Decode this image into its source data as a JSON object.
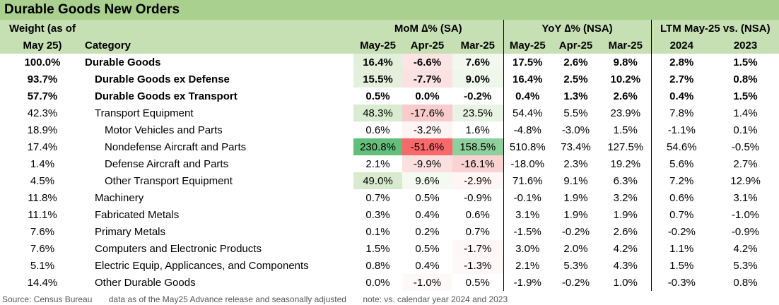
{
  "title": "Durable Goods New Orders",
  "header": {
    "weight_line1": "Weight (as of",
    "weight_line2": "May 25)",
    "category": "Category",
    "mom_group": "MoM ∆% (SA)",
    "yoy_group": "YoY ∆% (NSA)",
    "ltm_group": "LTM May-25 vs. (NSA)",
    "mom_cols": [
      "May-25",
      "Apr-25",
      "Mar-25"
    ],
    "yoy_cols": [
      "May-25",
      "Apr-25",
      "Mar-25"
    ],
    "ltm_cols": [
      "2024",
      "2023"
    ]
  },
  "rows": [
    {
      "weight": "100.0%",
      "category": "Durable Goods",
      "level": 1,
      "bold": true,
      "mom": [
        "16.4%",
        "-6.6%",
        "7.6%"
      ],
      "yoy": [
        "17.5%",
        "2.6%",
        "9.8%"
      ],
      "ltm": [
        "2.8%",
        "1.5%"
      ],
      "mom_bg": [
        "#e2efda",
        "#fce4e4",
        "#f3f8ef"
      ]
    },
    {
      "weight": "93.7%",
      "category": "Durable Goods ex Defense",
      "level": 2,
      "bold": true,
      "mom": [
        "15.5%",
        "-7.7%",
        "9.0%"
      ],
      "yoy": [
        "16.4%",
        "2.5%",
        "10.2%"
      ],
      "ltm": [
        "2.7%",
        "0.8%"
      ],
      "mom_bg": [
        "#e4f0dc",
        "#fbe1e1",
        "#eff6ea"
      ]
    },
    {
      "weight": "57.7%",
      "category": "Durable Goods ex Transport",
      "level": 2,
      "bold": true,
      "mom": [
        "0.5%",
        "0.0%",
        "-0.2%"
      ],
      "yoy": [
        "0.4%",
        "1.3%",
        "2.6%"
      ],
      "ltm": [
        "0.4%",
        "1.5%"
      ],
      "mom_bg": [
        "#ffffff",
        "#ffffff",
        "#ffffff"
      ]
    },
    {
      "weight": "42.3%",
      "category": "Transport Equipment",
      "level": 3,
      "bold": false,
      "mom": [
        "48.3%",
        "-17.6%",
        "23.5%"
      ],
      "yoy": [
        "54.4%",
        "5.5%",
        "23.9%"
      ],
      "ltm": [
        "7.8%",
        "1.4%"
      ],
      "mom_bg": [
        "#d9ebd0",
        "#f8cccc",
        "#e9f3e3"
      ]
    },
    {
      "weight": "18.9%",
      "category": "Motor Vehicles and Parts",
      "level": 4,
      "bold": false,
      "mom": [
        "0.6%",
        "-3.2%",
        "1.6%"
      ],
      "yoy": [
        "-4.8%",
        "-3.0%",
        "1.5%"
      ],
      "ltm": [
        "-1.1%",
        "0.1%"
      ],
      "mom_bg": [
        "#ffffff",
        "#fef4f4",
        "#ffffff"
      ]
    },
    {
      "weight": "17.4%",
      "category": "Nondefense Aircraft and Parts",
      "level": 4,
      "bold": false,
      "mom": [
        "230.8%",
        "-51.6%",
        "158.5%"
      ],
      "yoy": [
        "510.8%",
        "73.4%",
        "127.5%"
      ],
      "ltm": [
        "54.6%",
        "-0.5%"
      ],
      "mom_bg": [
        "#63be7b",
        "#f8696b",
        "#8ecf9c"
      ]
    },
    {
      "weight": "1.4%",
      "category": "Defense Aircraft and Parts",
      "level": 4,
      "bold": false,
      "mom": [
        "2.1%",
        "-9.9%",
        "-16.1%"
      ],
      "yoy": [
        "-18.0%",
        "2.3%",
        "19.2%"
      ],
      "ltm": [
        "5.6%",
        "2.7%"
      ],
      "mom_bg": [
        "#ffffff",
        "#fbe0e0",
        "#f9d2d2"
      ]
    },
    {
      "weight": "4.5%",
      "category": "Other Transport Equipment",
      "level": 4,
      "bold": false,
      "mom": [
        "49.0%",
        "9.6%",
        "-2.9%"
      ],
      "yoy": [
        "71.6%",
        "9.1%",
        "6.3%"
      ],
      "ltm": [
        "7.2%",
        "12.9%"
      ],
      "mom_bg": [
        "#d8ebcf",
        "#f4f9f1",
        "#fef5f5"
      ]
    },
    {
      "weight": "11.8%",
      "category": "Machinery",
      "level": 3,
      "bold": false,
      "mom": [
        "0.7%",
        "0.5%",
        "-0.9%"
      ],
      "yoy": [
        "-0.1%",
        "1.9%",
        "3.2%"
      ],
      "ltm": [
        "0.6%",
        "3.1%"
      ],
      "mom_bg": [
        "#ffffff",
        "#ffffff",
        "#ffffff"
      ]
    },
    {
      "weight": "11.1%",
      "category": "Fabricated Metals",
      "level": 3,
      "bold": false,
      "mom": [
        "0.3%",
        "0.4%",
        "0.6%"
      ],
      "yoy": [
        "3.1%",
        "1.9%",
        "1.9%"
      ],
      "ltm": [
        "0.7%",
        "-1.0%"
      ],
      "mom_bg": [
        "#ffffff",
        "#ffffff",
        "#ffffff"
      ]
    },
    {
      "weight": "7.6%",
      "category": "Primary Metals",
      "level": 3,
      "bold": false,
      "mom": [
        "0.1%",
        "0.2%",
        "0.7%"
      ],
      "yoy": [
        "-1.5%",
        "-0.2%",
        "2.6%"
      ],
      "ltm": [
        "-0.2%",
        "-0.9%"
      ],
      "mom_bg": [
        "#ffffff",
        "#ffffff",
        "#ffffff"
      ]
    },
    {
      "weight": "7.6%",
      "category": "Computers and Electronic Products",
      "level": 3,
      "bold": false,
      "mom": [
        "1.5%",
        "0.5%",
        "-1.7%"
      ],
      "yoy": [
        "3.0%",
        "2.0%",
        "4.2%"
      ],
      "ltm": [
        "1.1%",
        "4.2%"
      ],
      "mom_bg": [
        "#ffffff",
        "#ffffff",
        "#fef7f7"
      ]
    },
    {
      "weight": "5.1%",
      "category": "Electric Equip, Applicances, and Components",
      "level": 3,
      "bold": false,
      "mom": [
        "0.8%",
        "0.4%",
        "-1.3%"
      ],
      "yoy": [
        "2.1%",
        "5.3%",
        "4.3%"
      ],
      "ltm": [
        "1.5%",
        "5.3%"
      ],
      "mom_bg": [
        "#ffffff",
        "#ffffff",
        "#fef8f8"
      ]
    },
    {
      "weight": "14.4%",
      "category": "Other Durable Goods",
      "level": 3,
      "bold": false,
      "mom": [
        "0.0%",
        "-1.0%",
        "0.5%"
      ],
      "yoy": [
        "-1.9%",
        "-0.2%",
        "1.0%"
      ],
      "ltm": [
        "-0.3%",
        "0.8%"
      ],
      "mom_bg": [
        "#ffffff",
        "#fef9f9",
        "#ffffff"
      ]
    }
  ],
  "footer": {
    "source": "Source: Census Bureau",
    "data_note": "data as of the May25 Advance release and seasonally adjusted",
    "note": "note: vs. calendar year 2024 and 2023"
  }
}
